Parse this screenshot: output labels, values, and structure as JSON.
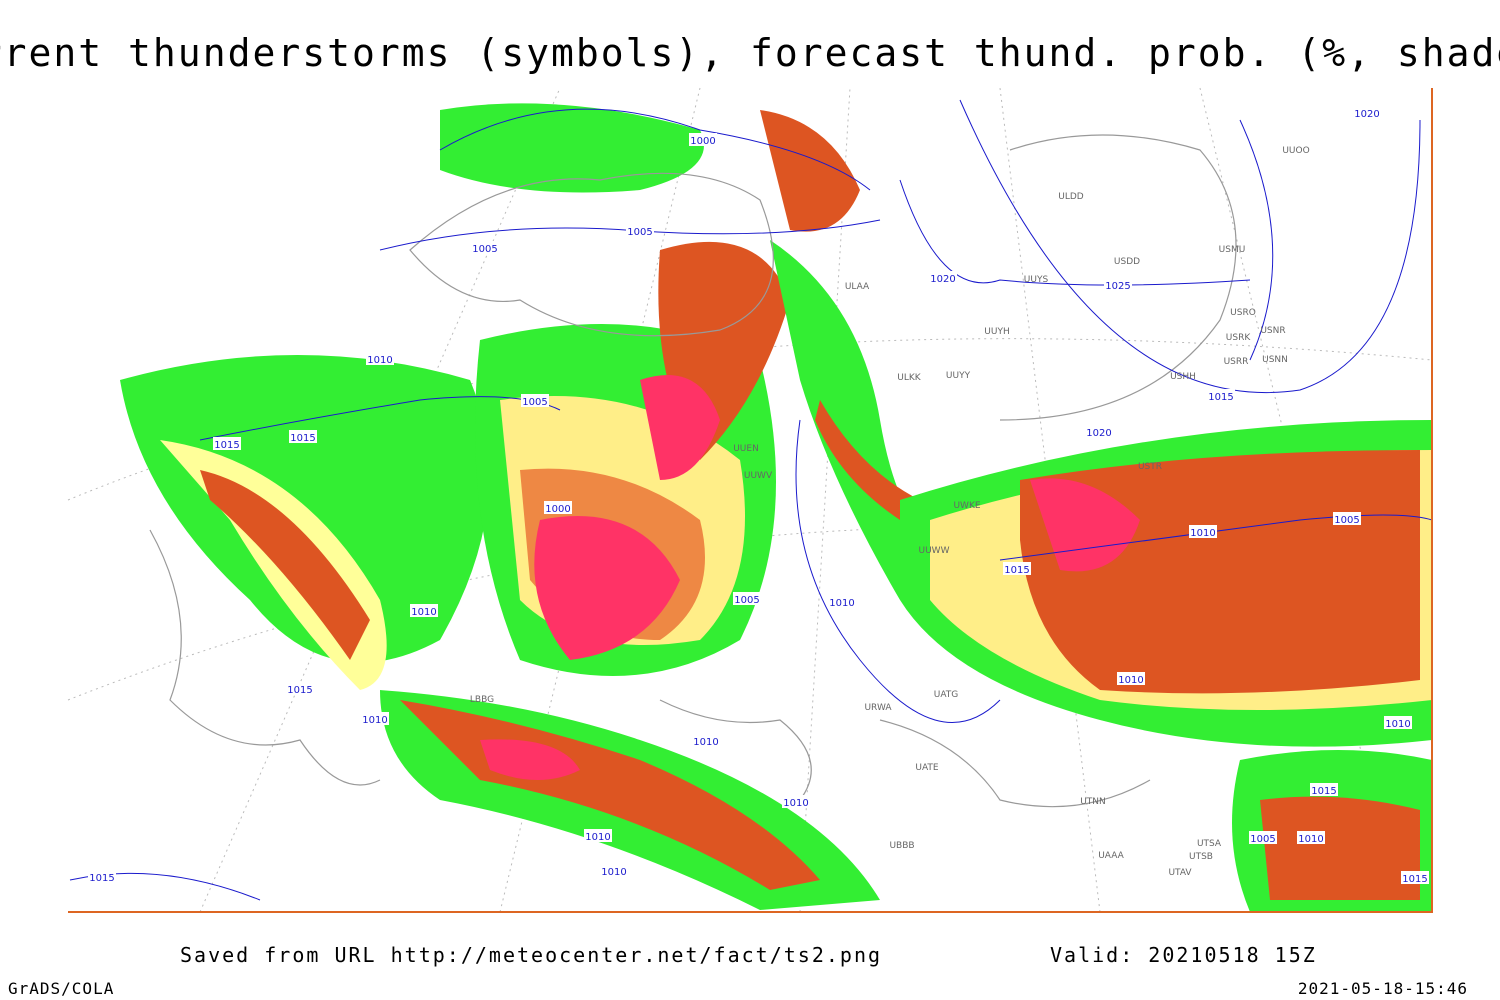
{
  "header": {
    "title": "Current thunderstorms (symbols), forecast thund. prob. (%, shaded)"
  },
  "footer": {
    "source": "Saved from URL http://meteocenter.net/fact/ts2.png",
    "valid": "Valid: 20210518 15Z",
    "software": "GrADS/COLA",
    "timestamp": "2021-05-18-15:46"
  },
  "isobar_labels": [
    "1000",
    "1005",
    "1005",
    "1020",
    "1025",
    "1020",
    "1010",
    "1015",
    "1015",
    "1005",
    "1000",
    "1010",
    "1005",
    "1015",
    "1005",
    "1010",
    "1010",
    "1015",
    "1020",
    "1015",
    "1010",
    "1010",
    "1010",
    "1010",
    "1015",
    "1010",
    "1010",
    "1010",
    "1015",
    "1010",
    "1005",
    "1015"
  ],
  "station_labels": [
    "ULDD",
    "USDD",
    "USMU",
    "UUYS",
    "USRO",
    "USRK",
    "USNR",
    "UUYH",
    "USRR",
    "USNN",
    "ULKK",
    "UUYY",
    "USHH",
    "ULAA",
    "USTR",
    "UWKE",
    "UAAA",
    "UTSA",
    "UTSB",
    "UTAV",
    "UTNN",
    "UATE",
    "UATG",
    "URWA",
    "UUWW",
    "UUWV",
    "UUEN",
    "UBBB",
    "LBBG",
    "UUOO"
  ]
}
